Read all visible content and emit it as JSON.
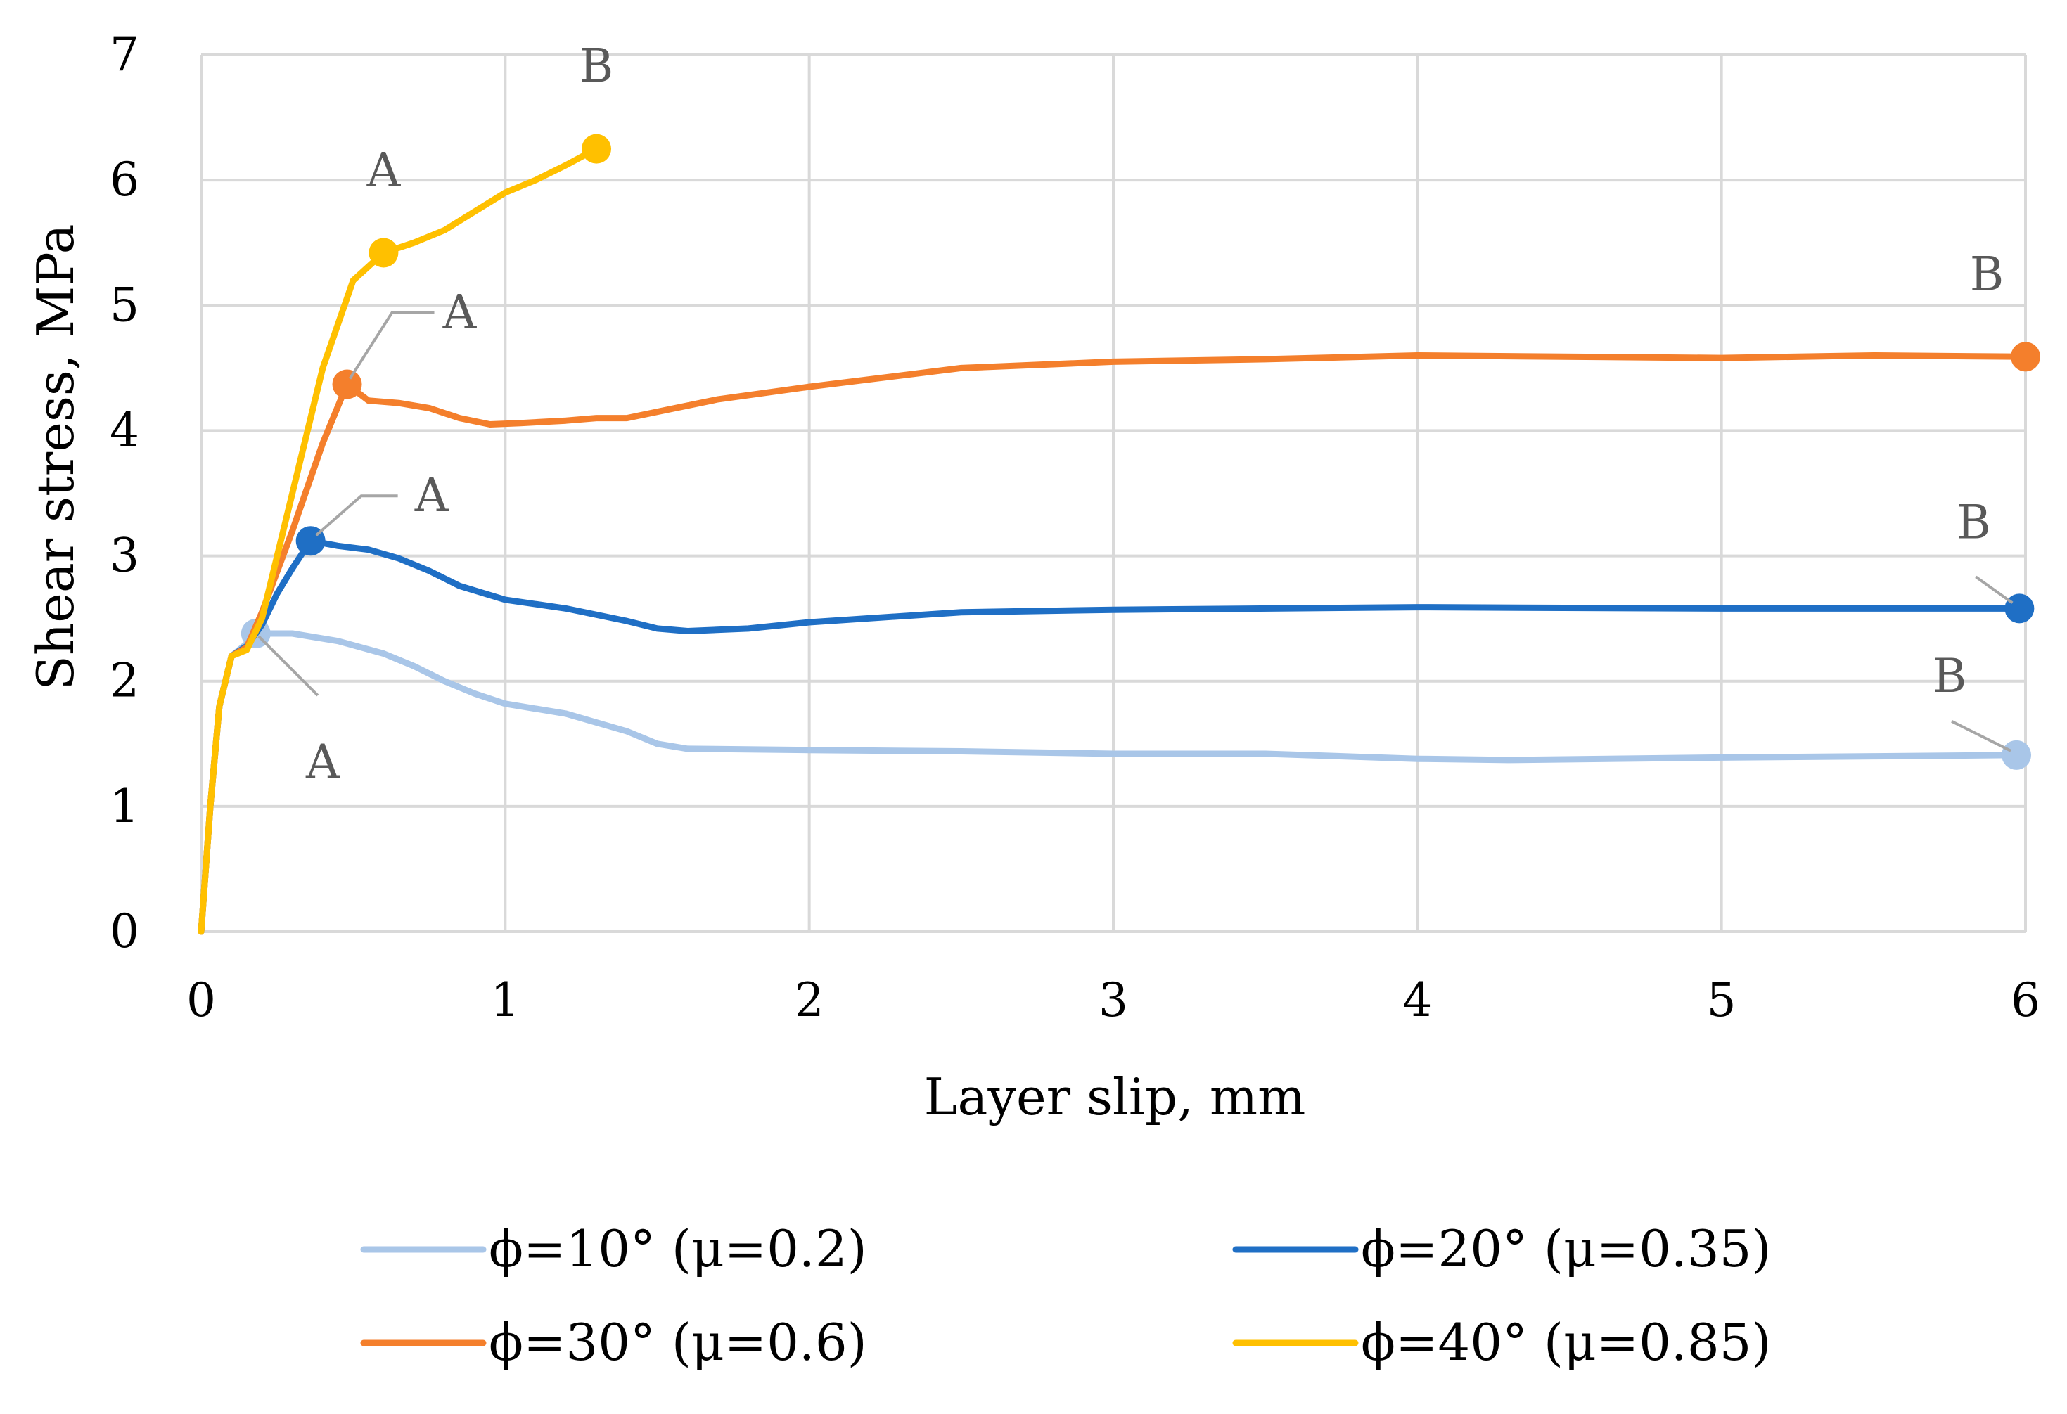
{
  "chart_data": {
    "type": "line",
    "title": "",
    "xlabel": "Layer slip, mm",
    "ylabel": "Shear stress, MPa",
    "xlim": [
      0,
      6
    ],
    "ylim": [
      0,
      7
    ],
    "xticks": [
      "0",
      "1",
      "2",
      "3",
      "4",
      "5",
      "6"
    ],
    "yticks": [
      "0",
      "1",
      "2",
      "3",
      "4",
      "5",
      "6",
      "7"
    ],
    "grid": true,
    "legend_position": "bottom",
    "series": [
      {
        "name": "ϕ=10° (μ=0.2)",
        "color": "#A9C6E8",
        "x": [
          0,
          0.03,
          0.06,
          0.1,
          0.15,
          0.18,
          0.3,
          0.45,
          0.6,
          0.7,
          0.8,
          0.9,
          1.0,
          1.2,
          1.4,
          1.5,
          1.6,
          2.0,
          2.5,
          3.0,
          3.5,
          4.0,
          4.3,
          5.0,
          5.5,
          5.97
        ],
        "y": [
          0,
          1.0,
          1.8,
          2.2,
          2.3,
          2.38,
          2.38,
          2.32,
          2.22,
          2.12,
          2.0,
          1.9,
          1.82,
          1.74,
          1.6,
          1.5,
          1.46,
          1.45,
          1.44,
          1.42,
          1.42,
          1.38,
          1.37,
          1.39,
          1.4,
          1.41
        ],
        "markers": [
          {
            "x": 0.18,
            "y": 2.38,
            "label": "A"
          },
          {
            "x": 5.97,
            "y": 1.41,
            "label": "B"
          }
        ]
      },
      {
        "name": "ϕ=20° (μ=0.35)",
        "color": "#1F6FC5",
        "x": [
          0,
          0.03,
          0.06,
          0.1,
          0.15,
          0.2,
          0.25,
          0.3,
          0.36,
          0.45,
          0.55,
          0.65,
          0.75,
          0.85,
          1.0,
          1.2,
          1.4,
          1.5,
          1.6,
          1.8,
          2.0,
          2.5,
          3.0,
          4.0,
          5.0,
          5.5,
          5.98
        ],
        "y": [
          0,
          1.0,
          1.8,
          2.2,
          2.28,
          2.45,
          2.7,
          2.9,
          3.12,
          3.08,
          3.05,
          2.98,
          2.88,
          2.76,
          2.65,
          2.58,
          2.48,
          2.42,
          2.4,
          2.42,
          2.47,
          2.55,
          2.57,
          2.59,
          2.58,
          2.58,
          2.58
        ],
        "markers": [
          {
            "x": 0.36,
            "y": 3.12,
            "label": "A"
          },
          {
            "x": 5.98,
            "y": 2.58,
            "label": "B"
          }
        ]
      },
      {
        "name": "ϕ=30° (μ=0.6)",
        "color": "#F47F2C",
        "x": [
          0,
          0.03,
          0.06,
          0.1,
          0.15,
          0.2,
          0.3,
          0.4,
          0.48,
          0.55,
          0.65,
          0.75,
          0.85,
          0.95,
          1.05,
          1.2,
          1.3,
          1.4,
          1.5,
          1.7,
          2.0,
          2.5,
          3.0,
          3.5,
          4.0,
          5.0,
          5.5,
          6.0
        ],
        "y": [
          0,
          1.0,
          1.8,
          2.2,
          2.27,
          2.55,
          3.2,
          3.9,
          4.37,
          4.24,
          4.22,
          4.18,
          4.1,
          4.05,
          4.06,
          4.08,
          4.1,
          4.1,
          4.15,
          4.25,
          4.35,
          4.5,
          4.55,
          4.57,
          4.6,
          4.58,
          4.6,
          4.59
        ],
        "markers": [
          {
            "x": 0.48,
            "y": 4.37,
            "label": "A"
          },
          {
            "x": 6.0,
            "y": 4.59,
            "label": "B"
          }
        ]
      },
      {
        "name": "ϕ=40° (μ=0.85)",
        "color": "#FFC000",
        "x": [
          0,
          0.03,
          0.06,
          0.1,
          0.15,
          0.2,
          0.3,
          0.4,
          0.5,
          0.6,
          0.7,
          0.8,
          0.9,
          1.0,
          1.1,
          1.2,
          1.3
        ],
        "y": [
          0,
          1.0,
          1.8,
          2.2,
          2.25,
          2.5,
          3.5,
          4.5,
          5.2,
          5.42,
          5.5,
          5.6,
          5.75,
          5.9,
          6.0,
          6.12,
          6.25
        ],
        "markers": [
          {
            "x": 0.6,
            "y": 5.42,
            "label": "A"
          },
          {
            "x": 1.3,
            "y": 6.25,
            "label": "B"
          }
        ]
      }
    ]
  }
}
